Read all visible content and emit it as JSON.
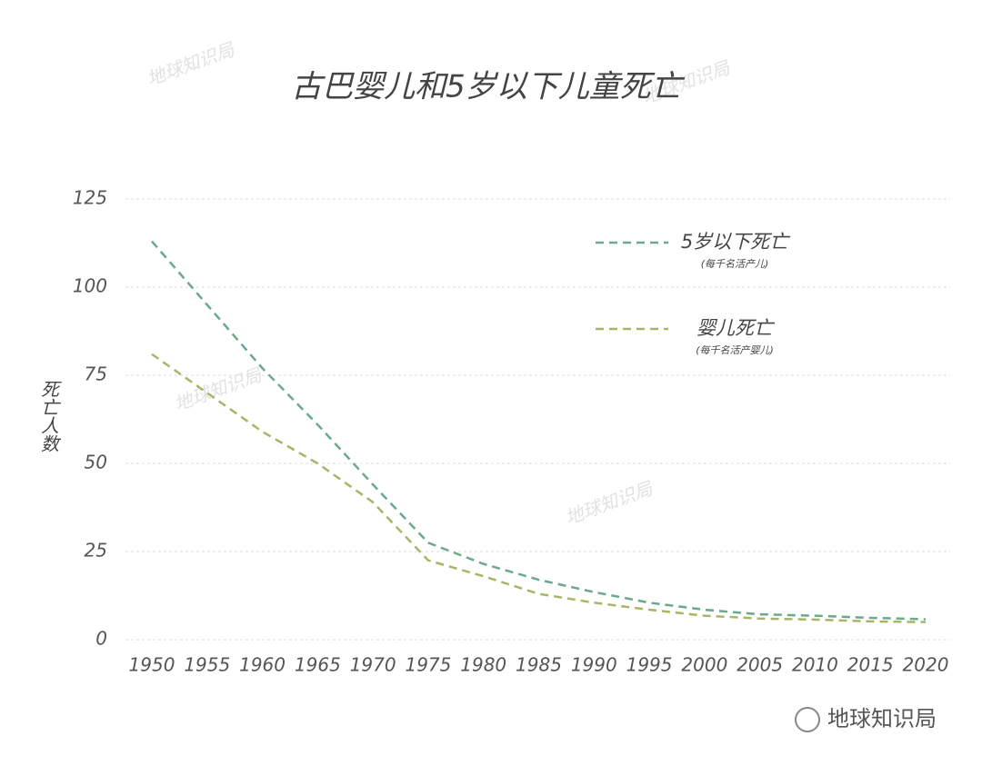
{
  "chart_data": {
    "type": "line",
    "title": "古巴婴儿和5岁以下儿童死亡",
    "ylabel": "死亡人数",
    "x": [
      1950,
      1955,
      1960,
      1965,
      1970,
      1975,
      1980,
      1985,
      1990,
      1995,
      2000,
      2005,
      2010,
      2015,
      2020
    ],
    "xlim": [
      1950,
      2020
    ],
    "xticks": [
      1950,
      1955,
      1960,
      1965,
      1970,
      1975,
      1980,
      1985,
      1990,
      1995,
      2000,
      2005,
      2010,
      2015,
      2020
    ],
    "ylim": [
      0,
      125
    ],
    "yticks": [
      0,
      25,
      50,
      75,
      100,
      125
    ],
    "grid": true,
    "legend": "upper right",
    "series": [
      {
        "name": "5岁以下死亡",
        "note": "(每千名活产儿)",
        "color": "#6aa98a",
        "values": [
          113,
          95,
          77,
          61,
          44,
          27.5,
          21.5,
          17,
          13.5,
          10.5,
          8.5,
          7.2,
          6.8,
          6.2,
          5.8
        ]
      },
      {
        "name": "婴儿死亡",
        "note": "(每千名活产婴儿)",
        "color": "#a9b566",
        "values": [
          81,
          70,
          59,
          50,
          39,
          22.5,
          18,
          13,
          10.5,
          8.5,
          6.8,
          6,
          5.7,
          5.2,
          5
        ]
      }
    ],
    "watermark": "地球知识局",
    "source": "地球知识局"
  }
}
